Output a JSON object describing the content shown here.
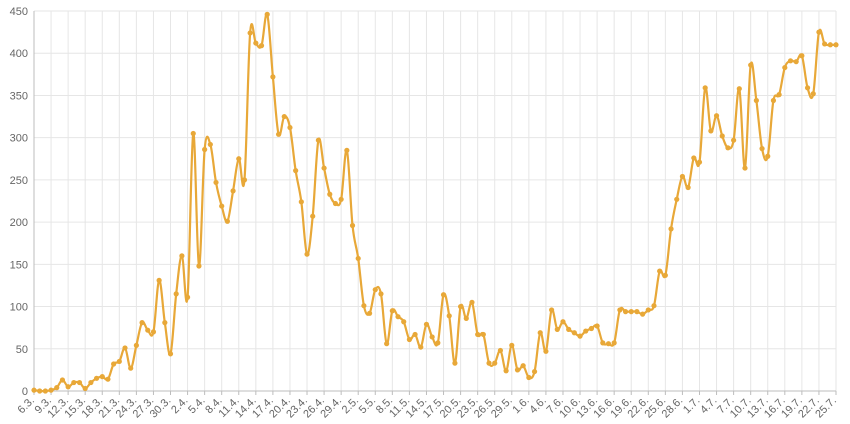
{
  "chart_data": {
    "type": "line",
    "title": "",
    "xlabel": "",
    "ylabel": "",
    "ylim": [
      0,
      450
    ],
    "y_ticks": [
      0,
      50,
      100,
      150,
      200,
      250,
      300,
      350,
      400,
      450
    ],
    "grid": true,
    "line_color": "#e8a838",
    "x_start": "6.3.",
    "x_tick_every": 3,
    "x_tick_labels": [
      "6.3.",
      "9.3.",
      "12.3.",
      "15.3.",
      "18.3.",
      "21.3.",
      "24.3.",
      "27.3.",
      "30.3.",
      "2.4.",
      "5.4.",
      "8.4.",
      "11.4.",
      "14.4.",
      "17.4.",
      "20.4.",
      "23.4.",
      "26.4.",
      "29.4.",
      "2.5.",
      "5.5.",
      "8.5.",
      "11.5.",
      "14.5.",
      "17.5.",
      "20.5.",
      "23.5.",
      "26.5.",
      "29.5.",
      "1.6.",
      "4.6.",
      "7.6.",
      "10.6.",
      "13.6.",
      "16.6.",
      "19.6.",
      "22.6.",
      "25.6.",
      "28.6.",
      "1.7.",
      "4.7.",
      "7.7.",
      "10.7.",
      "13.7.",
      "16.7.",
      "19.7.",
      "22.7.",
      "25.7."
    ],
    "series": [
      {
        "values": [
          1,
          0,
          0,
          1,
          4,
          13,
          5,
          10,
          10,
          3,
          10,
          15,
          17,
          14,
          32,
          35,
          51,
          27,
          54,
          81,
          72,
          70,
          131,
          81,
          44,
          115,
          160,
          111,
          305,
          148,
          286,
          292,
          247,
          219,
          201,
          237,
          275,
          250,
          424,
          412,
          409,
          446,
          372,
          304,
          325,
          312,
          261,
          224,
          162,
          207,
          297,
          264,
          233,
          222,
          227,
          285,
          196,
          157,
          101,
          92,
          120,
          115,
          56,
          95,
          88,
          82,
          61,
          67,
          52,
          79,
          64,
          57,
          114,
          89,
          33,
          100,
          86,
          105,
          67,
          67,
          33,
          33,
          48,
          24,
          54,
          25,
          30,
          16,
          23,
          69,
          47,
          96,
          73,
          82,
          73,
          69,
          65,
          71,
          74,
          77,
          57,
          56,
          57,
          96,
          94,
          94,
          94,
          91,
          96,
          101,
          142,
          137,
          192,
          227,
          254,
          241,
          276,
          271,
          359,
          308,
          326,
          302,
          288,
          297,
          358,
          264,
          386,
          344,
          287,
          278,
          344,
          351,
          383,
          391,
          390,
          397,
          359,
          352,
          425,
          411,
          410,
          410
        ]
      }
    ]
  }
}
